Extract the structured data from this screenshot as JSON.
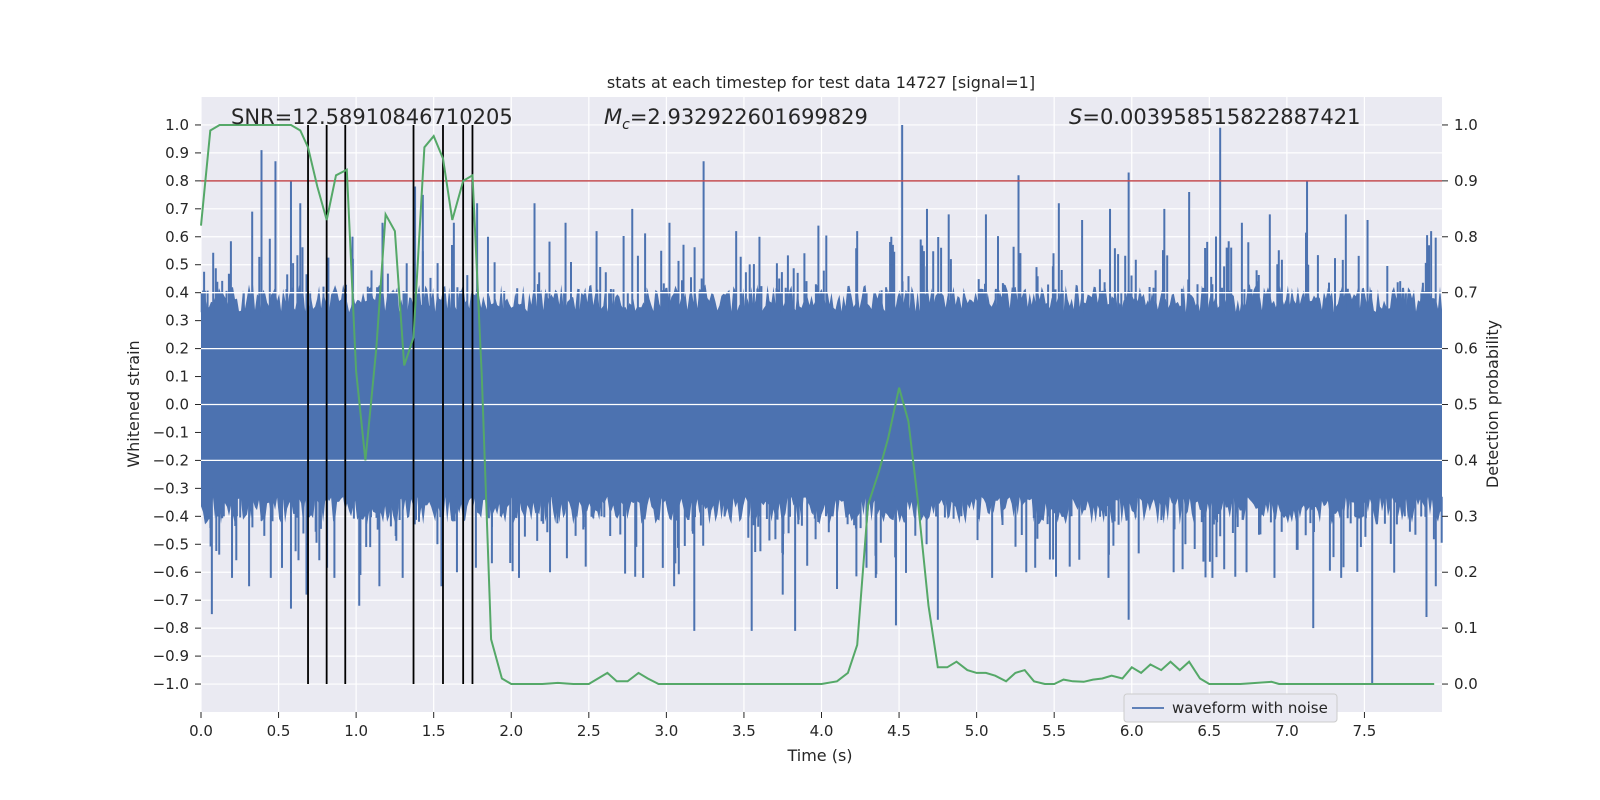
{
  "chart_data": {
    "type": "line",
    "title": "stats at each timestep for test data 14727 [signal=1]",
    "xlabel": "Time (s)",
    "ylabel_left": "Whitened strain",
    "ylabel_right": "Detection probability",
    "xlim": [
      0.0,
      8.0
    ],
    "ylim_left": [
      -1.1,
      1.1
    ],
    "ylim_right": [
      -0.05,
      1.05
    ],
    "x_ticks": [
      "0.0",
      "0.5",
      "1.0",
      "1.5",
      "2.0",
      "2.5",
      "3.0",
      "3.5",
      "4.0",
      "4.5",
      "5.0",
      "5.5",
      "6.0",
      "6.5",
      "7.0",
      "7.5"
    ],
    "x_tick_values": [
      0.0,
      0.5,
      1.0,
      1.5,
      2.0,
      2.5,
      3.0,
      3.5,
      4.0,
      4.5,
      5.0,
      5.5,
      6.0,
      6.5,
      7.0,
      7.5
    ],
    "y_ticks_left": [
      "1.0",
      "0.9",
      "0.8",
      "0.7",
      "0.6",
      "0.5",
      "0.4",
      "0.3",
      "0.2",
      "0.1",
      "0.0",
      "−0.1",
      "−0.2",
      "−0.3",
      "−0.4",
      "−0.5",
      "−0.6",
      "−0.7",
      "−0.8",
      "−0.9",
      "−1.0"
    ],
    "y_tick_values_left": [
      1.0,
      0.9,
      0.8,
      0.7,
      0.6,
      0.5,
      0.4,
      0.3,
      0.2,
      0.1,
      0.0,
      -0.1,
      -0.2,
      -0.3,
      -0.4,
      -0.5,
      -0.6,
      -0.7,
      -0.8,
      -0.9,
      -1.0
    ],
    "y_ticks_right": [
      "1.0",
      "0.9",
      "0.8",
      "0.7",
      "0.6",
      "0.5",
      "0.4",
      "0.3",
      "0.2",
      "0.1",
      "0.0"
    ],
    "y_tick_values_right": [
      1.0,
      0.9,
      0.8,
      0.7,
      0.6,
      0.5,
      0.4,
      0.3,
      0.2,
      0.1,
      0.0
    ],
    "annotations": {
      "snr": "SNR=12.58910846710205",
      "mc_symbol": "M",
      "mc_subscript": "c",
      "mc_value": "=2.932922601699829",
      "s_symbol": "S",
      "s_value": "=0.003958515822887421"
    },
    "threshold": {
      "value": 0.8,
      "axis": "left",
      "color": "#c44e52"
    },
    "vertical_markers": {
      "x": [
        0.69,
        0.81,
        0.93,
        1.37,
        1.56,
        1.69,
        1.75
      ],
      "y_from": -1.0,
      "y_to": 1.0,
      "color": "#000000"
    },
    "legend": {
      "label": "waveform with noise",
      "position": "lower-right"
    },
    "waveform": {
      "name": "waveform with noise",
      "color": "#4c72b0",
      "envelope_typical": 0.38,
      "spikes": [
        {
          "x": 0.33,
          "y": 0.69
        },
        {
          "x": 0.39,
          "y": 0.91
        },
        {
          "x": 0.48,
          "y": 0.87
        },
        {
          "x": 0.58,
          "y": 0.8
        },
        {
          "x": 0.64,
          "y": 0.72
        },
        {
          "x": 1.17,
          "y": 0.65
        },
        {
          "x": 1.38,
          "y": 0.78
        },
        {
          "x": 1.43,
          "y": 0.75
        },
        {
          "x": 1.63,
          "y": 0.65
        },
        {
          "x": 1.78,
          "y": 0.72
        },
        {
          "x": 1.85,
          "y": 0.6
        },
        {
          "x": 2.15,
          "y": 0.72
        },
        {
          "x": 2.35,
          "y": 0.65
        },
        {
          "x": 2.55,
          "y": 0.62
        },
        {
          "x": 2.78,
          "y": 0.7
        },
        {
          "x": 3.02,
          "y": 0.65
        },
        {
          "x": 3.24,
          "y": 0.87
        },
        {
          "x": 3.45,
          "y": 0.62
        },
        {
          "x": 3.6,
          "y": 0.6
        },
        {
          "x": 3.98,
          "y": 0.64
        },
        {
          "x": 4.23,
          "y": 0.62
        },
        {
          "x": 4.45,
          "y": 0.6
        },
        {
          "x": 4.52,
          "y": 1.0
        },
        {
          "x": 4.68,
          "y": 0.7
        },
        {
          "x": 4.82,
          "y": 0.68
        },
        {
          "x": 5.06,
          "y": 0.68
        },
        {
          "x": 5.27,
          "y": 0.82
        },
        {
          "x": 5.53,
          "y": 0.72
        },
        {
          "x": 5.68,
          "y": 0.66
        },
        {
          "x": 5.86,
          "y": 0.7
        },
        {
          "x": 5.98,
          "y": 0.83
        },
        {
          "x": 6.21,
          "y": 0.7
        },
        {
          "x": 6.37,
          "y": 0.76
        },
        {
          "x": 6.57,
          "y": 0.99
        },
        {
          "x": 6.71,
          "y": 0.65
        },
        {
          "x": 6.89,
          "y": 0.68
        },
        {
          "x": 7.13,
          "y": 0.8
        },
        {
          "x": 7.38,
          "y": 0.68
        },
        {
          "x": 7.52,
          "y": 0.66
        },
        {
          "x": 7.93,
          "y": 0.62
        },
        {
          "x": 0.07,
          "y": -0.75
        },
        {
          "x": 0.2,
          "y": -0.62
        },
        {
          "x": 0.31,
          "y": -0.65
        },
        {
          "x": 0.45,
          "y": -0.62
        },
        {
          "x": 0.58,
          "y": -0.73
        },
        {
          "x": 0.68,
          "y": -0.68
        },
        {
          "x": 0.86,
          "y": -0.62
        },
        {
          "x": 1.02,
          "y": -0.72
        },
        {
          "x": 1.15,
          "y": -0.65
        },
        {
          "x": 1.3,
          "y": -0.62
        },
        {
          "x": 1.55,
          "y": -0.65
        },
        {
          "x": 1.65,
          "y": -0.6
        },
        {
          "x": 2.05,
          "y": -0.62
        },
        {
          "x": 2.25,
          "y": -0.6
        },
        {
          "x": 2.48,
          "y": -0.58
        },
        {
          "x": 2.85,
          "y": -0.62
        },
        {
          "x": 3.05,
          "y": -0.65
        },
        {
          "x": 3.18,
          "y": -0.81
        },
        {
          "x": 3.55,
          "y": -0.81
        },
        {
          "x": 3.83,
          "y": -0.81
        },
        {
          "x": 3.75,
          "y": -0.68
        },
        {
          "x": 4.1,
          "y": -0.66
        },
        {
          "x": 4.35,
          "y": -0.62
        },
        {
          "x": 4.48,
          "y": -0.79
        },
        {
          "x": 4.75,
          "y": -0.77
        },
        {
          "x": 5.1,
          "y": -0.62
        },
        {
          "x": 5.32,
          "y": -0.6
        },
        {
          "x": 5.6,
          "y": -0.58
        },
        {
          "x": 5.85,
          "y": -0.62
        },
        {
          "x": 5.98,
          "y": -0.77
        },
        {
          "x": 6.27,
          "y": -0.6
        },
        {
          "x": 6.52,
          "y": -0.62
        },
        {
          "x": 6.74,
          "y": -0.6
        },
        {
          "x": 6.92,
          "y": -0.62
        },
        {
          "x": 7.17,
          "y": -0.8
        },
        {
          "x": 7.35,
          "y": -0.62
        },
        {
          "x": 7.55,
          "y": -1.0
        },
        {
          "x": 7.9,
          "y": -0.76
        },
        {
          "x": 7.96,
          "y": -0.65
        }
      ]
    },
    "detection_probability": {
      "name": "detection probability",
      "color": "#55a868",
      "axis": "right",
      "x": [
        0.0,
        0.06,
        0.12,
        0.2,
        0.3,
        0.4,
        0.5,
        0.58,
        0.64,
        0.69,
        0.75,
        0.81,
        0.87,
        0.94,
        1.0,
        1.06,
        1.13,
        1.19,
        1.25,
        1.31,
        1.37,
        1.44,
        1.5,
        1.56,
        1.62,
        1.69,
        1.75,
        1.81,
        1.87,
        1.94,
        2.0,
        2.06,
        2.12,
        2.2,
        2.3,
        2.4,
        2.5,
        2.62,
        2.68,
        2.75,
        2.82,
        2.88,
        2.95,
        3.0,
        3.2,
        3.5,
        3.8,
        4.0,
        4.1,
        4.17,
        4.23,
        4.3,
        4.37,
        4.43,
        4.5,
        4.56,
        4.62,
        4.69,
        4.75,
        4.81,
        4.87,
        4.94,
        5.0,
        5.06,
        5.12,
        5.19,
        5.25,
        5.31,
        5.37,
        5.44,
        5.5,
        5.56,
        5.62,
        5.69,
        5.75,
        5.81,
        5.87,
        5.94,
        6.0,
        6.06,
        6.12,
        6.19,
        6.25,
        6.31,
        6.37,
        6.44,
        6.5,
        6.56,
        6.7,
        6.9,
        6.95,
        7.0,
        7.2,
        7.5,
        7.6,
        7.95
      ],
      "y": [
        0.82,
        0.99,
        1.0,
        1.0,
        1.0,
        1.0,
        1.0,
        1.0,
        0.99,
        0.96,
        0.89,
        0.83,
        0.91,
        0.92,
        0.56,
        0.4,
        0.6,
        0.84,
        0.81,
        0.57,
        0.62,
        0.96,
        0.98,
        0.94,
        0.83,
        0.9,
        0.91,
        0.55,
        0.08,
        0.01,
        0.0,
        0.0,
        0.0,
        0.0,
        0.002,
        0.0,
        0.0,
        0.02,
        0.005,
        0.005,
        0.02,
        0.01,
        0.0,
        0.0,
        0.0,
        0.0,
        0.0,
        0.0,
        0.005,
        0.02,
        0.07,
        0.32,
        0.38,
        0.44,
        0.53,
        0.47,
        0.33,
        0.14,
        0.03,
        0.03,
        0.04,
        0.025,
        0.02,
        0.02,
        0.015,
        0.005,
        0.02,
        0.025,
        0.005,
        0.0,
        0.0,
        0.008,
        0.005,
        0.004,
        0.008,
        0.01,
        0.015,
        0.01,
        0.03,
        0.02,
        0.035,
        0.025,
        0.04,
        0.025,
        0.04,
        0.01,
        0.0,
        0.0,
        0.0,
        0.004,
        0.0,
        0.0,
        0.0,
        0.0,
        0.0,
        0.0
      ]
    }
  }
}
